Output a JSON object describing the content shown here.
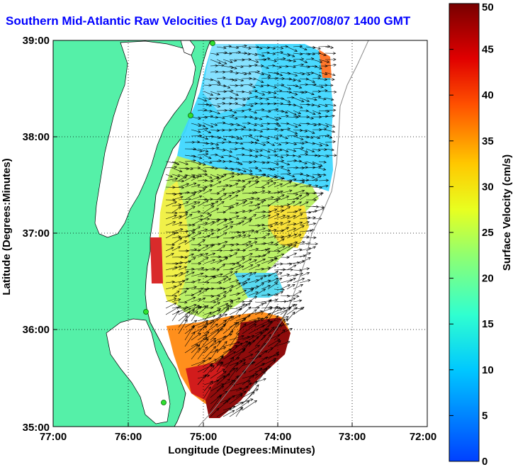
{
  "title": "Southern Mid-Atlantic Raw Velocities (1 Day Avg) 2007/08/07 1400 GMT",
  "map": {
    "x_label": "Longitude (Degrees:Minutes)",
    "y_label": "Latitude (Degrees:Minutes)",
    "lon_ticks": [
      "77:00",
      "76:00",
      "75:00",
      "74:00",
      "73:00",
      "72:00"
    ],
    "lat_ticks": [
      "35:00",
      "36:00",
      "37:00",
      "38:00",
      "39:00"
    ],
    "lon_range": [
      -77,
      -72
    ],
    "lat_range": [
      35,
      39
    ],
    "land_color": "#55f0a8",
    "grid": "dotted"
  },
  "colorbar": {
    "label": "Surface Velocity (cm/s)",
    "ticks": [
      "0",
      "5",
      "10",
      "15",
      "20",
      "25",
      "30",
      "35",
      "40",
      "45",
      "50"
    ],
    "range": [
      0,
      50
    ]
  }
}
